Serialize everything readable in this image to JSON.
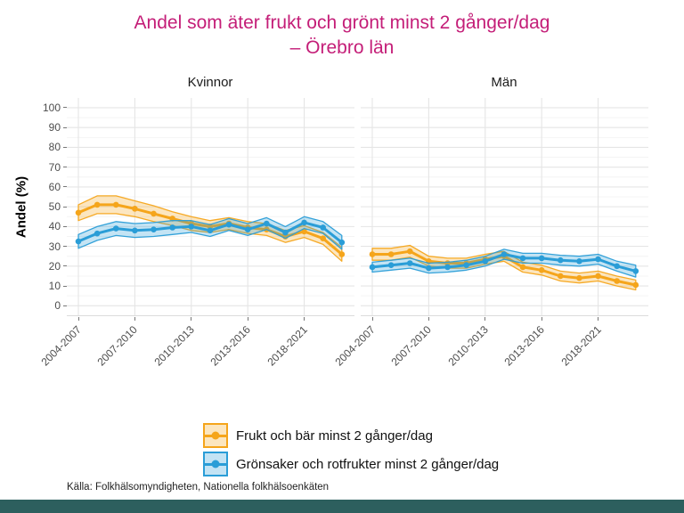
{
  "title": {
    "line1": "Andel som äter frukt och grönt minst 2 gånger/dag",
    "line2": "– Örebro län"
  },
  "facets": [
    "Kvinnor",
    "Män"
  ],
  "y_axis": {
    "label": "Andel (%)",
    "ticks": [
      0,
      10,
      20,
      30,
      40,
      50,
      60,
      70,
      80,
      90,
      100
    ]
  },
  "x_axis": {
    "tick_labels": [
      "2004-2007",
      "2007-2010",
      "2010-2013",
      "2013-2016",
      "2018-2021"
    ]
  },
  "legend": [
    {
      "label": "Frukt och bär minst 2 gånger/dag",
      "color_key": "frukt"
    },
    {
      "label": "Grönsaker och rotfrukter minst 2 gånger/dag",
      "color_key": "gronsaker"
    }
  ],
  "caption": "Källa: Folkhälsomyndigheten, Nationella folkhälsoenkäten",
  "colors": {
    "title": "#C41E78",
    "frukt": "#F5A51B",
    "gronsaker": "#2A9DD7",
    "grid_major": "#E5E5E5",
    "grid_minor": "#F4F4F4",
    "panel_edge": "#DCDCDC",
    "tick_text": "#4D4D4D",
    "footer_bar": "#2D5F5E"
  },
  "chart_data": [
    {
      "type": "line",
      "title": "Kvinnor",
      "ylabel": "Andel (%)",
      "ylim": [
        0,
        100
      ],
      "grid": true,
      "legend_position": "bottom",
      "x_point_count": 15,
      "x_ticks": [
        {
          "index": 0,
          "label": "2004-2007"
        },
        {
          "index": 3,
          "label": "2007-2010"
        },
        {
          "index": 6,
          "label": "2010-2013"
        },
        {
          "index": 9,
          "label": "2013-2016"
        },
        {
          "index": 12,
          "label": "2018-2021"
        }
      ],
      "series": [
        {
          "name": "Frukt och bär minst 2 gånger/dag",
          "color_key": "frukt",
          "values": [
            47,
            51,
            51,
            49,
            46.5,
            44,
            41.5,
            40,
            41.5,
            39.5,
            38.5,
            35,
            37.5,
            34,
            26
          ],
          "ci_halfwidth": [
            4,
            4.5,
            4.5,
            4,
            4,
            3.5,
            3.5,
            3,
            3,
            3,
            3,
            3,
            3,
            3,
            3.5
          ]
        },
        {
          "name": "Grönsaker och rotfrukter minst 2 gånger/dag",
          "color_key": "gronsaker",
          "values": [
            32.5,
            36.5,
            39,
            38,
            38.5,
            39.5,
            40,
            38,
            41,
            38.5,
            41.5,
            37,
            42,
            39.5,
            32
          ],
          "ci_halfwidth": [
            3.5,
            3.5,
            3.5,
            3.5,
            3.5,
            3.5,
            3,
            3,
            3,
            3,
            3,
            3,
            3,
            3,
            3.5
          ]
        }
      ]
    },
    {
      "type": "line",
      "title": "Män",
      "ylabel": "Andel (%)",
      "ylim": [
        0,
        100
      ],
      "grid": true,
      "legend_position": "bottom",
      "x_point_count": 15,
      "x_ticks": [
        {
          "index": 0,
          "label": "2004-2007"
        },
        {
          "index": 3,
          "label": "2007-2010"
        },
        {
          "index": 6,
          "label": "2010-2013"
        },
        {
          "index": 9,
          "label": "2013-2016"
        },
        {
          "index": 12,
          "label": "2018-2021"
        }
      ],
      "series": [
        {
          "name": "Frukt och bär minst 2 gånger/dag",
          "color_key": "frukt",
          "values": [
            26,
            26,
            27.5,
            22.5,
            21.5,
            21.5,
            23.5,
            25,
            19.5,
            18,
            15,
            14,
            15,
            12.5,
            10.5
          ],
          "ci_halfwidth": [
            3,
            3,
            3,
            2.5,
            2.5,
            2.5,
            2.5,
            2.5,
            2.5,
            2.5,
            2.5,
            2.5,
            2.5,
            2.5,
            2.5
          ]
        },
        {
          "name": "Grönsaker och rotfrukter minst 2 gånger/dag",
          "color_key": "gronsaker",
          "values": [
            19.5,
            20.5,
            21.5,
            19,
            19.5,
            20.5,
            22.5,
            26,
            24,
            24,
            23,
            22.5,
            23.5,
            20,
            17.5
          ],
          "ci_halfwidth": [
            2.5,
            2.5,
            2.5,
            2.5,
            2.5,
            2.5,
            2.5,
            2.5,
            2.5,
            2.5,
            2.5,
            2.5,
            2.5,
            2.5,
            3
          ]
        }
      ]
    }
  ]
}
